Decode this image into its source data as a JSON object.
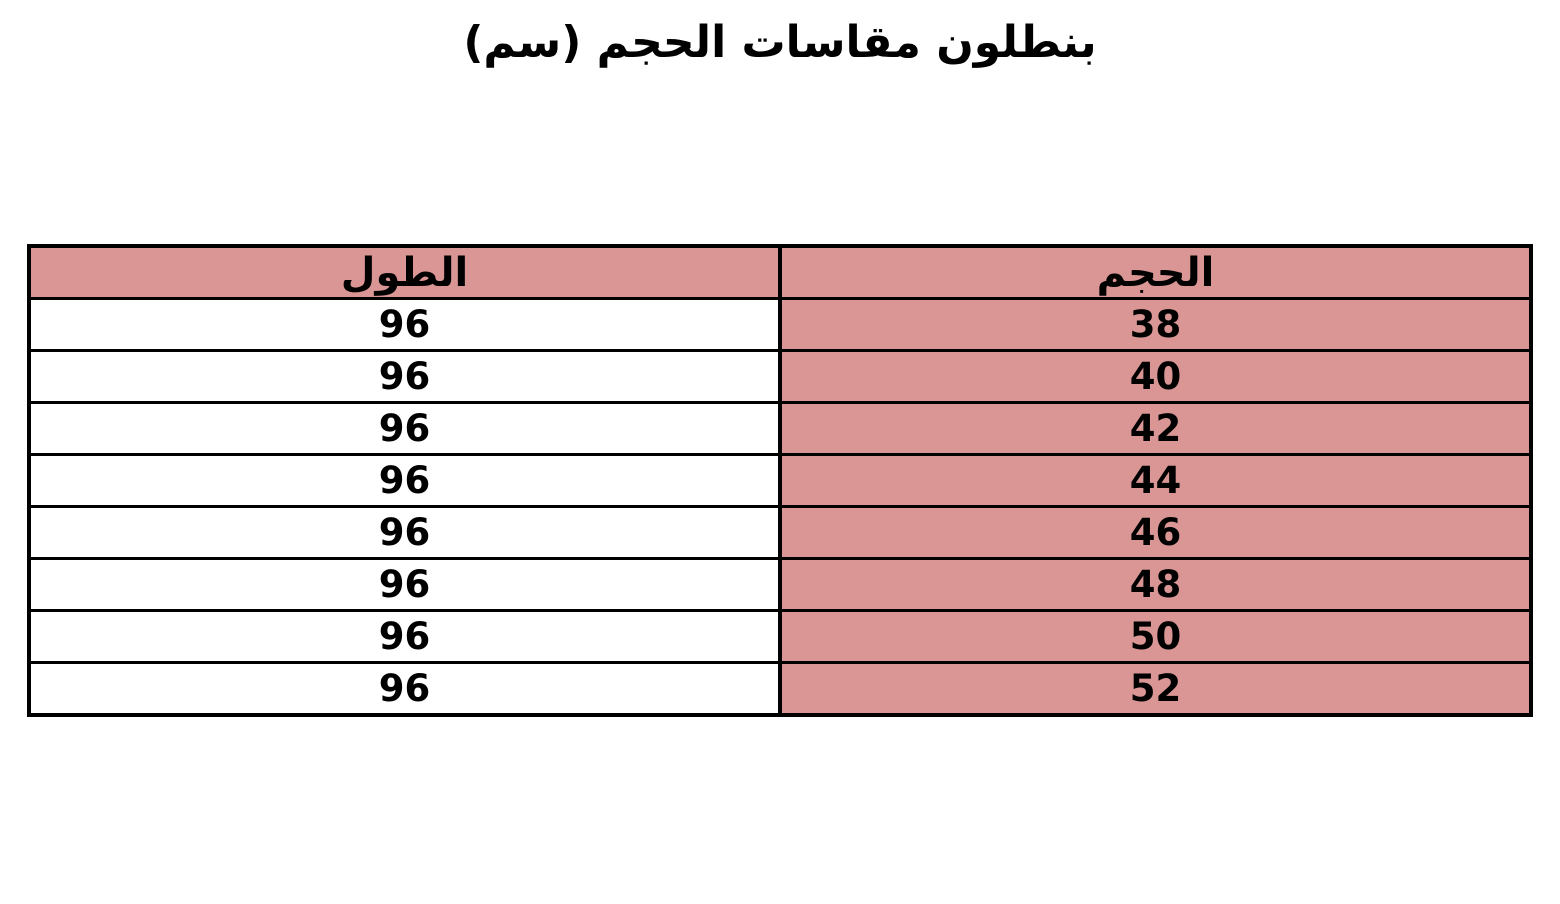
{
  "page": {
    "direction": "rtl"
  },
  "chart_data": {
    "type": "table",
    "title": "بنطلون مقاسات الحجم (سم)",
    "columns": [
      "الحجم",
      "الطول"
    ],
    "rows": [
      [
        "38",
        "96"
      ],
      [
        "40",
        "96"
      ],
      [
        "42",
        "96"
      ],
      [
        "44",
        "96"
      ],
      [
        "46",
        "96"
      ],
      [
        "48",
        "96"
      ],
      [
        "50",
        "96"
      ],
      [
        "52",
        "96"
      ]
    ],
    "layout": {
      "title_position": "top-center",
      "first_column_side": "right",
      "grid": "all-borders"
    },
    "colors": {
      "header_bg": "#DA9694",
      "size_column_bg": "#DA9694",
      "length_column_bg": "#FFFFFF",
      "border": "#000000",
      "text": "#000000",
      "page_bg": "#FFFFFF"
    }
  }
}
